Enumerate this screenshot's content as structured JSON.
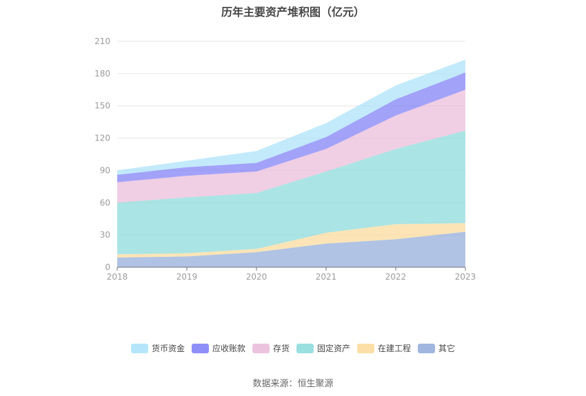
{
  "chart_data": {
    "type": "area",
    "stacked": true,
    "title": "历年主要资产堆积图（亿元）",
    "categories": [
      "2018",
      "2019",
      "2020",
      "2021",
      "2022",
      "2023"
    ],
    "ylim": [
      0,
      210
    ],
    "yticks": [
      0,
      30,
      60,
      90,
      120,
      150,
      180,
      210
    ],
    "grid": "horizontal",
    "legend_position": "bottom",
    "series": [
      {
        "name": "其它",
        "color": "#8fa9d9",
        "values": [
          9,
          10,
          14,
          22,
          26,
          33
        ]
      },
      {
        "name": "在建工程",
        "color": "#fbd997",
        "values": [
          3,
          3,
          3,
          10,
          14,
          8
        ]
      },
      {
        "name": "固定资产",
        "color": "#88d9d9",
        "values": [
          48,
          52,
          52,
          57,
          70,
          86
        ]
      },
      {
        "name": "存货",
        "color": "#e9b9d9",
        "values": [
          19,
          20,
          20,
          21,
          31,
          38
        ]
      },
      {
        "name": "应收账款",
        "color": "#7b7bf7",
        "values": [
          7,
          8,
          8,
          11,
          15,
          16
        ]
      },
      {
        "name": "货币资金",
        "color": "#a8e1fa",
        "values": [
          4,
          6,
          11,
          13,
          13,
          12
        ]
      }
    ],
    "legend_order": [
      "货币资金",
      "应收账款",
      "存货",
      "固定资产",
      "在建工程",
      "其它"
    ]
  },
  "source": "数据来源：恒生聚源"
}
